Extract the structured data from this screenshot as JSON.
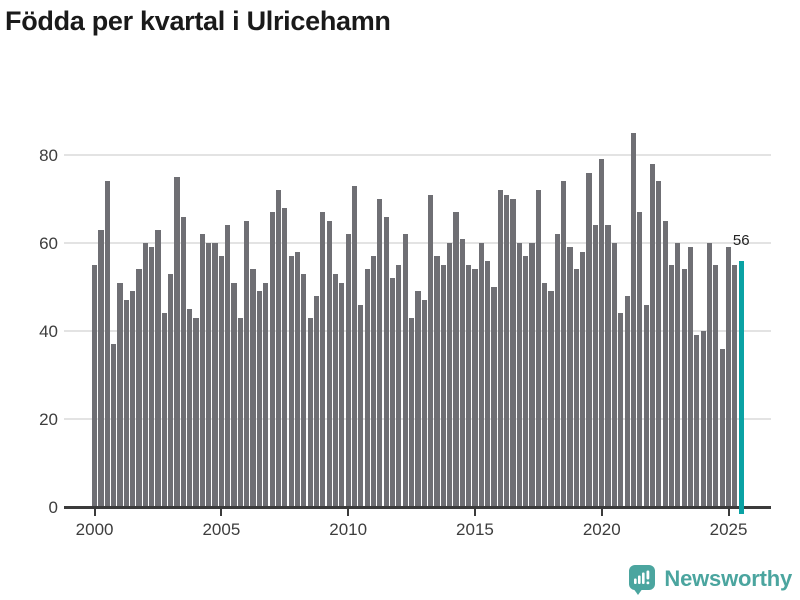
{
  "title": "Födda per kvartal i Ulricehamn",
  "chart_data": {
    "type": "bar",
    "title": "Födda per kvartal i Ulricehamn",
    "x_unit": "quarter",
    "x_start": "2000 Q1",
    "x_end": "2025 Q3",
    "x_axis": {
      "tick_labels": [
        "2000",
        "2005",
        "2010",
        "2015",
        "2020",
        "2025"
      ],
      "tick_years": [
        2000,
        2005,
        2010,
        2015,
        2020,
        2025
      ]
    },
    "y_axis": {
      "tick_labels": [
        "0",
        "20",
        "40",
        "60",
        "80"
      ],
      "tick_values": [
        0,
        20,
        40,
        60,
        80
      ],
      "ylim": [
        0,
        88
      ],
      "gridlines": true
    },
    "values": [
      55,
      63,
      74,
      37,
      51,
      47,
      49,
      54,
      60,
      59,
      63,
      44,
      53,
      75,
      66,
      45,
      43,
      62,
      60,
      60,
      57,
      64,
      51,
      43,
      65,
      54,
      49,
      51,
      67,
      72,
      68,
      57,
      58,
      53,
      43,
      48,
      67,
      65,
      53,
      51,
      62,
      73,
      46,
      54,
      57,
      70,
      66,
      52,
      55,
      62,
      43,
      49,
      47,
      71,
      57,
      55,
      60,
      67,
      61,
      55,
      54,
      60,
      56,
      50,
      72,
      71,
      70,
      60,
      57,
      60,
      72,
      51,
      49,
      62,
      74,
      59,
      54,
      58,
      76,
      64,
      79,
      64,
      60,
      44,
      48,
      85,
      67,
      46,
      78,
      74,
      65,
      55,
      60,
      54,
      59,
      39,
      40,
      60,
      55,
      36,
      59,
      55,
      56
    ],
    "bar_color": "#6f6f74",
    "highlight": {
      "index": 102,
      "value": 56,
      "label": "56",
      "color": "#0aa2a4"
    },
    "axis_color": "#3b3b3b",
    "gridline_color": "#e3e3e3",
    "legend": "none"
  },
  "footer": {
    "brand": "Newsworthy",
    "brand_color": "#4ba59f",
    "logo_icon": "speech-bubble-bar-chart-icon"
  }
}
